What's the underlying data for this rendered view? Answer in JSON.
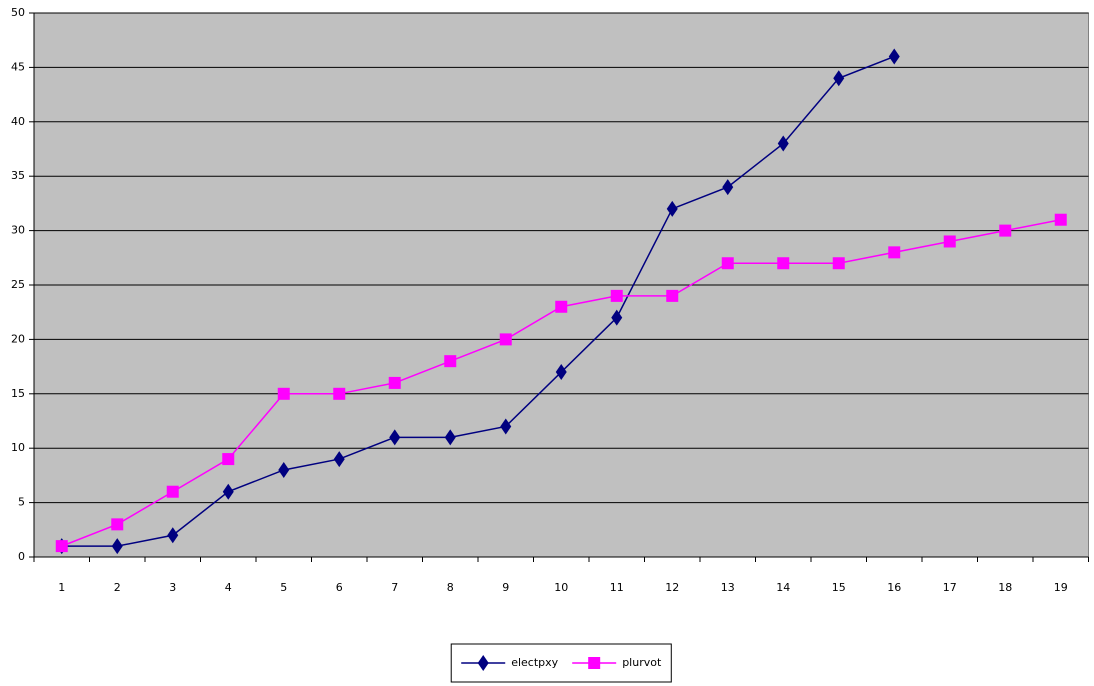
{
  "chart_data": {
    "type": "line",
    "categories": [
      "1",
      "2",
      "3",
      "4",
      "5",
      "6",
      "7",
      "8",
      "9",
      "10",
      "11",
      "12",
      "13",
      "14",
      "15",
      "16",
      "17",
      "18",
      "19"
    ],
    "series": [
      {
        "name": "electpxy",
        "color": "#000080",
        "marker": "diamond",
        "values": [
          1,
          1,
          2,
          6,
          8,
          9,
          11,
          11,
          12,
          17,
          22,
          32,
          34,
          38,
          44,
          46,
          null,
          null,
          null
        ]
      },
      {
        "name": "plurvot",
        "color": "#ff00ff",
        "marker": "square",
        "values": [
          1,
          3,
          6,
          9,
          15,
          15,
          16,
          18,
          20,
          23,
          24,
          24,
          27,
          27,
          27,
          28,
          29,
          30,
          31
        ]
      }
    ],
    "ylim": [
      0,
      50
    ],
    "yticks": [
      0,
      5,
      10,
      15,
      20,
      25,
      30,
      35,
      40,
      45,
      50
    ],
    "grid": true,
    "plot_background": "#c0c0c0",
    "legend": "bottom"
  }
}
